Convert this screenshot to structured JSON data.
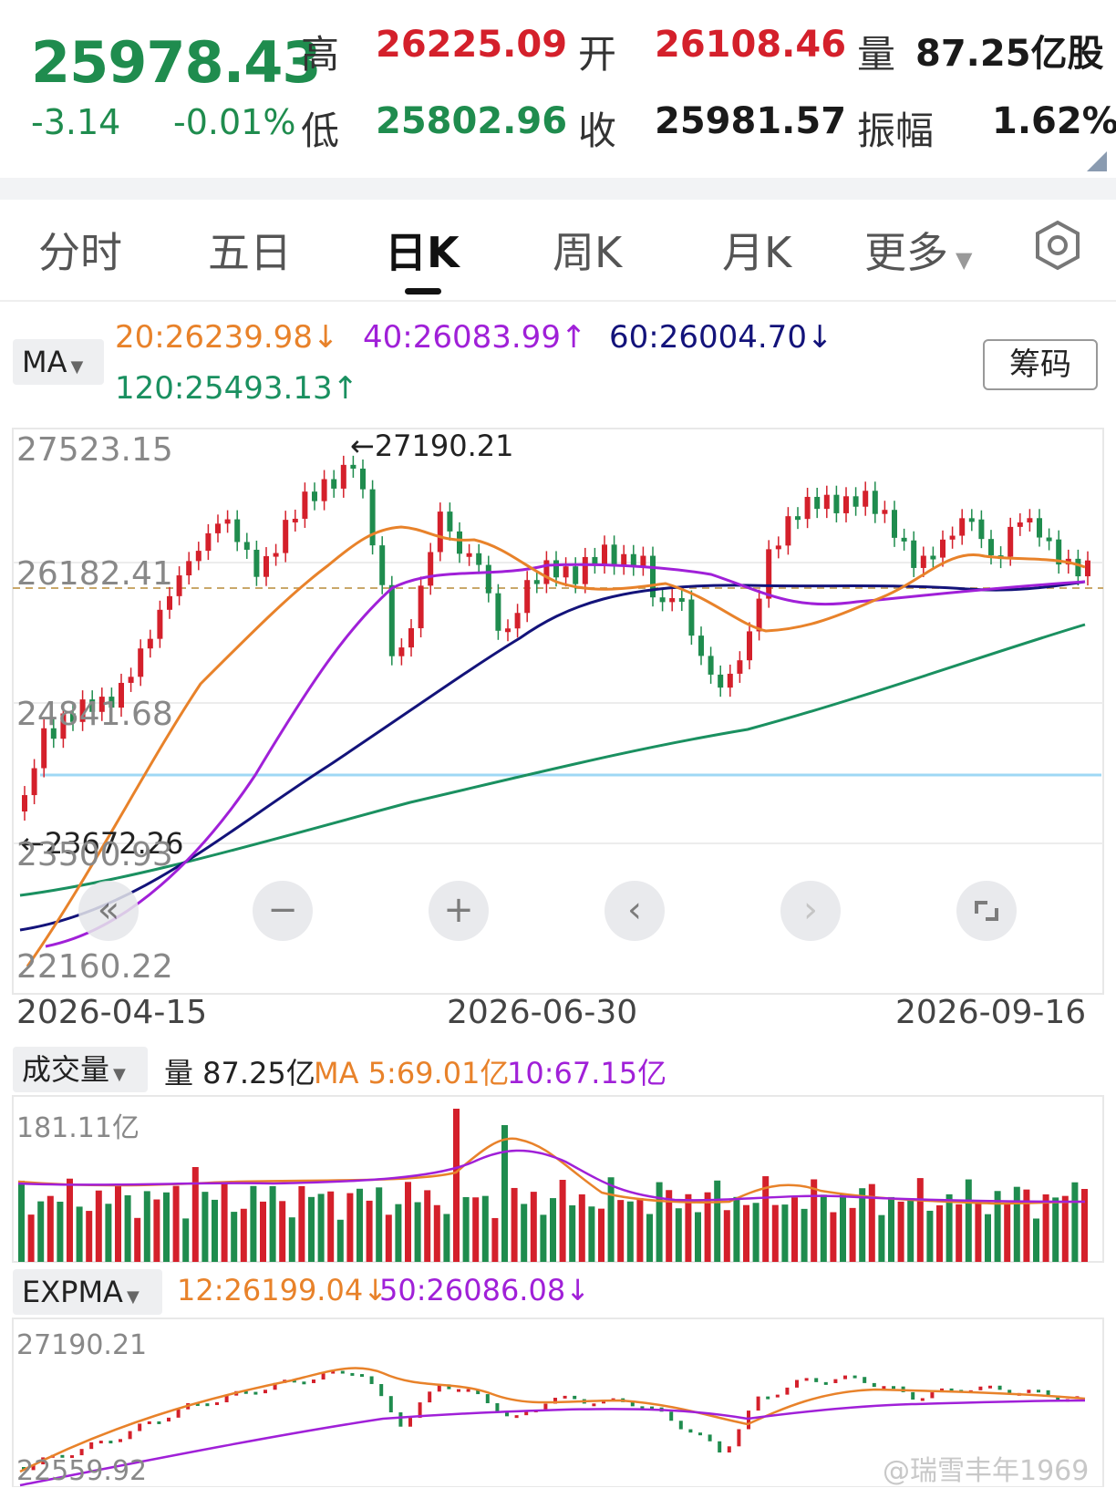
{
  "quote": {
    "price": "25978.43",
    "change": "-3.14",
    "change_pct": "-0.01%",
    "high_label": "高",
    "high": "26225.09",
    "open_label": "开",
    "open": "26108.46",
    "volume_label": "量",
    "volume": "87.25亿股",
    "low_label": "低",
    "low": "25802.96",
    "close_label": "收",
    "close": "25981.57",
    "amplitude_label": "振幅",
    "amplitude": "1.62%"
  },
  "tabs": [
    {
      "label": "分时"
    },
    {
      "label": "五日"
    },
    {
      "label": "日K"
    },
    {
      "label": "周K"
    },
    {
      "label": "月K"
    },
    {
      "label": "更多"
    }
  ],
  "active_tab": "日K",
  "ma_panel": {
    "selector": "MA",
    "ma20": "20:26239.98↓",
    "ma40": "40:26083.99↑",
    "ma60": "60:26004.70↓",
    "ma120": "120:25493.13↑",
    "chips_button": "筹码",
    "y_labels": [
      "27523.15",
      "26182.41",
      "24841.68",
      "23500.93",
      "22160.22"
    ],
    "max_annotation": "←27190.21",
    "min_annotation": "←23672.26",
    "dates": [
      "2026-04-15",
      "2026-06-30",
      "2026-09-16"
    ]
  },
  "controls": {
    "rewind": "«",
    "zoom_out": "−",
    "zoom_in": "+",
    "prev": "‹",
    "next": "›"
  },
  "volume_panel": {
    "selector": "成交量",
    "volume": "量 87.25亿",
    "ma5": "MA 5:69.01亿",
    "ma10": "10:67.15亿",
    "max_label": "181.11亿"
  },
  "expma_panel": {
    "selector": "EXPMA",
    "ema12": "12:26199.04↓",
    "ema50": "50:26086.08↓",
    "top_label": "27190.21",
    "bottom_label": "22559.92"
  },
  "watermark": "@瑞雪丰年1969",
  "colors": {
    "up": "#d4202b",
    "down": "#1f8c4e",
    "ma20": "#e8822a",
    "ma40": "#a020d8",
    "ma60": "#13137a",
    "ma120": "#1a9060",
    "support": "#9fd8f5"
  },
  "chart_data": {
    "type": "candlestick",
    "x": [
      "2026-04-15",
      "2026-06-30",
      "2026-09-16"
    ],
    "ylim": [
      22160.22,
      27523.15
    ],
    "high_marker": 27190.21,
    "low_marker": 23672.26,
    "last_close": 25978.43
  }
}
